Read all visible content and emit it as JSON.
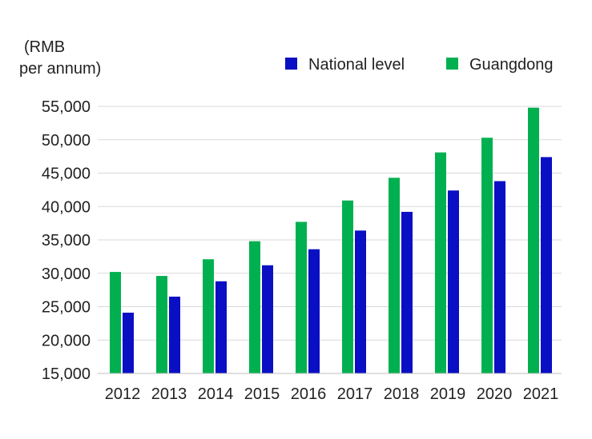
{
  "chart_data": {
    "type": "bar",
    "ylabel": [
      "(RMB",
      "per annum)"
    ],
    "categories": [
      "2012",
      "2013",
      "2014",
      "2015",
      "2016",
      "2017",
      "2018",
      "2019",
      "2020",
      "2021"
    ],
    "series": [
      {
        "name": "National level",
        "color": "#0a0fc4",
        "values": [
          24100,
          26500,
          28800,
          31200,
          33600,
          36400,
          39200,
          42400,
          43800,
          47400
        ]
      },
      {
        "name": "Guangdong",
        "color": "#00b050",
        "values": [
          30200,
          29600,
          32100,
          34800,
          37700,
          40900,
          44300,
          48100,
          50300,
          54800
        ]
      }
    ],
    "bar_order": [
      "Guangdong",
      "National level"
    ],
    "legend_order": [
      "National level",
      "Guangdong"
    ],
    "legend_position": "top-right",
    "yticks": [
      15000,
      20000,
      25000,
      30000,
      35000,
      40000,
      45000,
      50000,
      55000
    ],
    "ytick_labels": [
      "15,000",
      "20,000",
      "25,000",
      "30,000",
      "35,000",
      "40,000",
      "45,000",
      "50,000",
      "55,000"
    ],
    "ylim": [
      15000,
      55000
    ],
    "grid": true
  }
}
